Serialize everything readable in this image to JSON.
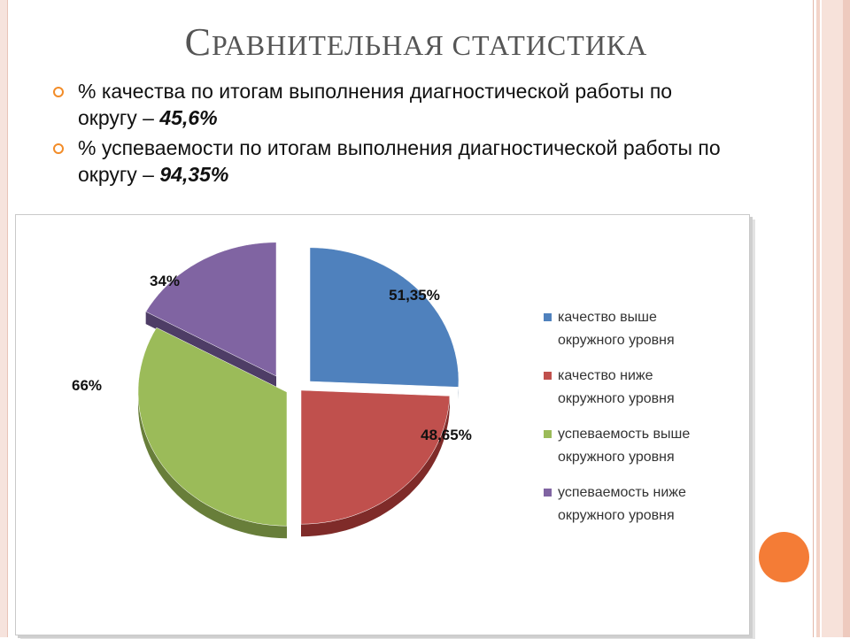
{
  "slide": {
    "title_first": "С",
    "title_rest": "равнительная статистика",
    "bullets": [
      {
        "text": "% качества по итогам выполнения диагностической работы по округу – ",
        "value": "45,6%"
      },
      {
        "text": "% успеваемости по итогам выполнения диагностической работы по округу – ",
        "value": "94,35%"
      }
    ]
  },
  "chart_data": {
    "type": "pie",
    "categories": [
      "качество выше окружного уровня",
      "качество ниже окружного уровня",
      "успеваемость выше окружного уровня",
      "успеваемость ниже окружного уровня"
    ],
    "values": [
      51.35,
      48.65,
      66,
      34
    ],
    "labels": [
      "51,35%",
      "48,65%",
      "66%",
      "34%"
    ],
    "legend_lines": [
      [
        "качество выше",
        "окружного уровня"
      ],
      [
        "качество ниже",
        "окружного уровня"
      ],
      [
        "успеваемость выше",
        "окружного уровня"
      ],
      [
        "успеваемость ниже",
        "окружного уровня"
      ]
    ],
    "colors": [
      "#4f81bd",
      "#c0504d",
      "#9bbb59",
      "#8064a2"
    ],
    "side_colors": [
      "#2f557f",
      "#7f2b29",
      "#687e3a",
      "#4e3d66"
    ],
    "legend_position": "right"
  },
  "theme": {
    "accent": "#f47c36"
  }
}
